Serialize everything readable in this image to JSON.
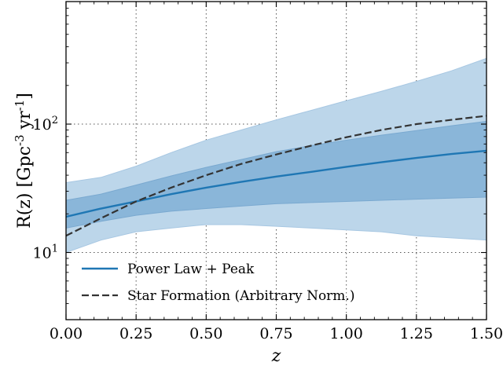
{
  "chart_data": {
    "type": "line",
    "title": "",
    "xlabel": "z",
    "ylabel": "R(z) [Gpc^-3 yr^-1]",
    "x_ticks": [
      0.0,
      0.25,
      0.5,
      0.75,
      1.0,
      1.25,
      1.5
    ],
    "x_tick_labels": [
      "0.00",
      "0.25",
      "0.50",
      "0.75",
      "1.00",
      "1.25",
      "1.50"
    ],
    "xlim": [
      0.0,
      1.5
    ],
    "ylim": [
      3,
      900
    ],
    "yscale": "log",
    "y_ticks": [
      10,
      100
    ],
    "y_tick_labels": [
      "10^1",
      "10^2"
    ],
    "grid": "dotted, at major ticks",
    "legend_position": "lower-left",
    "colors": {
      "median": "#1f77b4",
      "band_90": "#bcd6ea",
      "band_50": "#8ab6d9",
      "star_formation": "#333333"
    },
    "x": [
      0.0,
      0.125,
      0.25,
      0.375,
      0.5,
      0.625,
      0.75,
      0.875,
      1.0,
      1.125,
      1.25,
      1.375,
      1.5
    ],
    "series": [
      {
        "name": "Power Law + Peak",
        "style": "solid",
        "values": [
          19.0,
          22.0,
          25.0,
          28.5,
          32.0,
          35.5,
          39.0,
          42.5,
          46.5,
          50.5,
          54.5,
          58.5,
          62.0
        ],
        "band_50": {
          "lower": [
            15.5,
            17.5,
            19.5,
            21.0,
            22.0,
            23.0,
            24.0,
            24.5,
            25.0,
            25.5,
            26.0,
            26.5,
            27.0
          ],
          "upper": [
            25.5,
            28.5,
            33.5,
            39.5,
            46.0,
            53.0,
            61.0,
            68.0,
            75.0,
            82.0,
            89.0,
            97.0,
            105.0
          ]
        },
        "band_90": {
          "lower": [
            10.0,
            12.5,
            14.5,
            15.5,
            16.5,
            16.5,
            16.0,
            15.5,
            15.0,
            14.5,
            13.5,
            13.0,
            12.5
          ],
          "upper": [
            35.0,
            38.5,
            47.0,
            60.0,
            75.0,
            90.0,
            108.0,
            128.0,
            152.0,
            180.0,
            215.0,
            260.0,
            325.0
          ]
        }
      },
      {
        "name": "Star Formation (Arbitrary Norm.)",
        "style": "dashed",
        "values": [
          13.5,
          18.5,
          25.0,
          32.0,
          40.0,
          49.0,
          58.0,
          68.0,
          79.0,
          90.0,
          100.0,
          108.0,
          116.0
        ]
      }
    ]
  }
}
